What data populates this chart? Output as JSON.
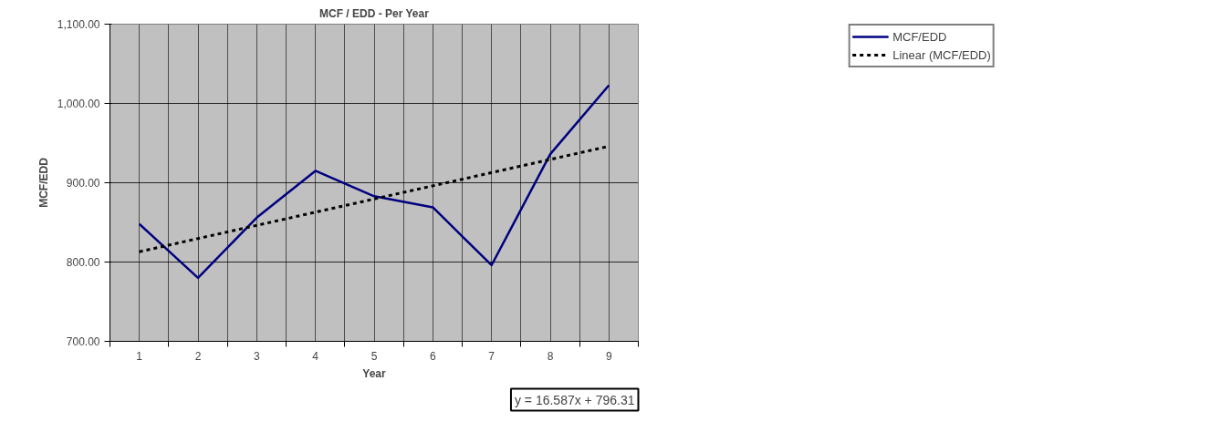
{
  "chart_data": {
    "type": "line",
    "title": "MCF / EDD - Per Year",
    "xlabel": "Year",
    "ylabel": "MCF/EDD",
    "x": [
      1,
      2,
      3,
      4,
      5,
      6,
      7,
      8,
      9
    ],
    "series": [
      {
        "name": "MCF/EDD",
        "color": "#000080",
        "values": [
          848,
          780,
          856,
          915,
          883,
          869,
          796,
          936,
          1023
        ],
        "line_style": "solid"
      },
      {
        "name": "Linear (MCF/EDD)",
        "color": "#000000",
        "type": "line",
        "x": [
          1,
          9
        ],
        "values": [
          813,
          946
        ],
        "line_style": "dashed"
      }
    ],
    "xlim": [
      0.5,
      9.5
    ],
    "xticks": [
      1,
      2,
      3,
      4,
      5,
      6,
      7,
      8,
      9
    ],
    "ylim": [
      700,
      1100
    ],
    "yticks": [
      {
        "value": 700,
        "label": "700.00"
      },
      {
        "value": 800,
        "label": "800.00"
      },
      {
        "value": 900,
        "label": "900.00"
      },
      {
        "value": 1000,
        "label": "1,000.00"
      },
      {
        "value": 1100,
        "label": "1,100.00"
      }
    ],
    "grid": true,
    "legend": "top right",
    "marker": "none",
    "annotations": [
      "y = 16.587x + 796.31"
    ]
  }
}
